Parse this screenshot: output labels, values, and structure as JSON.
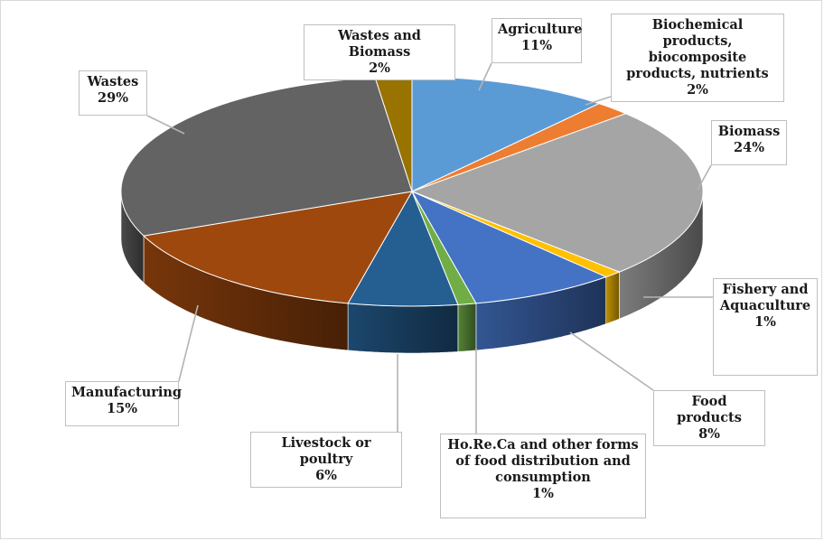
{
  "chart_data": {
    "type": "pie",
    "title": "",
    "three_d": true,
    "legend": "none",
    "slices": [
      {
        "label": "Agriculture",
        "value": 11,
        "value_label": "11%",
        "color": "#5b9bd5"
      },
      {
        "label": "Biochemical products, biocomposite products, nutrients",
        "value": 2,
        "value_label": "2%",
        "color": "#ed7d31"
      },
      {
        "label": "Biomass",
        "value": 24,
        "value_label": "24%",
        "color": "#a5a5a5"
      },
      {
        "label": "Fishery and Aquaculture",
        "value": 1,
        "value_label": "1%",
        "color": "#ffc000"
      },
      {
        "label": "Food products",
        "value": 8,
        "value_label": "8%",
        "color": "#4472c4"
      },
      {
        "label": "Ho.Re.Ca and other forms of food distribution and consumption",
        "value": 1,
        "value_label": "1%",
        "color": "#70ad47"
      },
      {
        "label": "Livestock or poultry",
        "value": 6,
        "value_label": "6%",
        "color": "#255e91"
      },
      {
        "label": "Manufacturing",
        "value": 15,
        "value_label": "15%",
        "color": "#9e480e"
      },
      {
        "label": "Wastes",
        "value": 29,
        "value_label": "29%",
        "color": "#636363"
      },
      {
        "label": "Wastes and Biomass",
        "value": 2,
        "value_label": "2%",
        "color": "#997300"
      }
    ]
  }
}
